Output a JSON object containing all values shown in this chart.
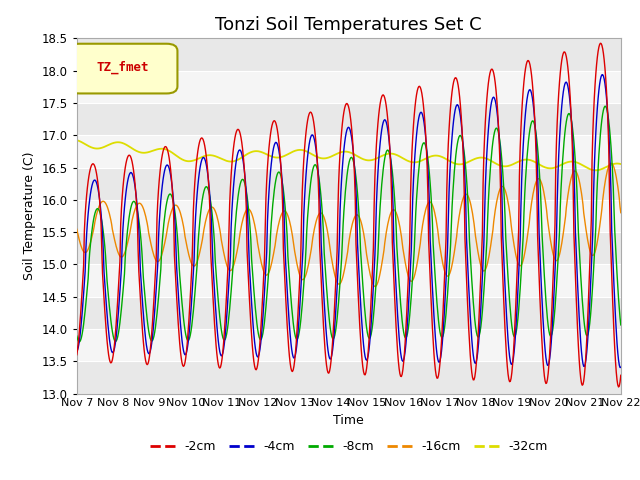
{
  "title": "Tonzi Soil Temperatures Set C",
  "ylabel": "Soil Temperature (C)",
  "xlabel": "Time",
  "ylim": [
    13.0,
    18.5
  ],
  "yticks": [
    13.0,
    13.5,
    14.0,
    14.5,
    15.0,
    15.5,
    16.0,
    16.5,
    17.0,
    17.5,
    18.0,
    18.5
  ],
  "xtick_labels": [
    "Nov 7",
    "Nov 8",
    "Nov 9",
    "Nov 10",
    "Nov 11",
    "Nov 12",
    "Nov 13",
    "Nov 14",
    "Nov 15",
    "Nov 16",
    "Nov 17",
    "Nov 18",
    "Nov 19",
    "Nov 20",
    "Nov 21",
    "Nov 22"
  ],
  "colors": {
    "-2cm": "#dd0000",
    "-4cm": "#0000cc",
    "-8cm": "#00aa00",
    "-16cm": "#ee8800",
    "-32cm": "#dddd00"
  },
  "legend_label": "TZ_fmet",
  "title_fontsize": 13,
  "label_fontsize": 9,
  "tick_fontsize": 8.5
}
